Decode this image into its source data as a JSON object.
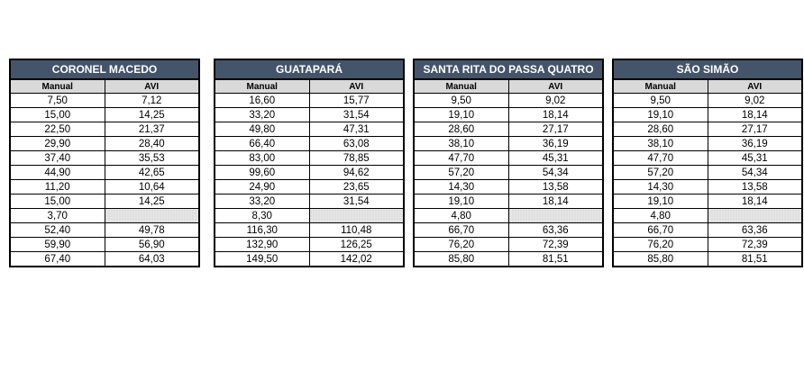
{
  "tables": [
    {
      "title": "CORONEL MACEDO",
      "columns": [
        "Manual",
        "AVI"
      ],
      "rows": [
        [
          "7,50",
          "7,12"
        ],
        [
          "15,00",
          "14,25"
        ],
        [
          "22,50",
          "21,37"
        ],
        [
          "29,90",
          "28,40"
        ],
        [
          "37,40",
          "35,53"
        ],
        [
          "44,90",
          "42,65"
        ],
        [
          "11,20",
          "10,64"
        ],
        [
          "15,00",
          "14,25"
        ],
        [
          "3,70",
          ""
        ],
        [
          "52,40",
          "49,78"
        ],
        [
          "59,90",
          "56,90"
        ],
        [
          "67,40",
          "64,03"
        ]
      ]
    },
    {
      "title": "GUATAPARÁ",
      "columns": [
        "Manual",
        "AVI"
      ],
      "rows": [
        [
          "16,60",
          "15,77"
        ],
        [
          "33,20",
          "31,54"
        ],
        [
          "49,80",
          "47,31"
        ],
        [
          "66,40",
          "63,08"
        ],
        [
          "83,00",
          "78,85"
        ],
        [
          "99,60",
          "94,62"
        ],
        [
          "24,90",
          "23,65"
        ],
        [
          "33,20",
          "31,54"
        ],
        [
          "8,30",
          ""
        ],
        [
          "116,30",
          "110,48"
        ],
        [
          "132,90",
          "126,25"
        ],
        [
          "149,50",
          "142,02"
        ]
      ]
    },
    {
      "title": "SANTA RITA DO PASSA QUATRO",
      "columns": [
        "Manual",
        "AVI"
      ],
      "rows": [
        [
          "9,50",
          "9,02"
        ],
        [
          "19,10",
          "18,14"
        ],
        [
          "28,60",
          "27,17"
        ],
        [
          "38,10",
          "36,19"
        ],
        [
          "47,70",
          "45,31"
        ],
        [
          "57,20",
          "54,34"
        ],
        [
          "14,30",
          "13,58"
        ],
        [
          "19,10",
          "18,14"
        ],
        [
          "4,80",
          ""
        ],
        [
          "66,70",
          "63,36"
        ],
        [
          "76,20",
          "72,39"
        ],
        [
          "85,80",
          "81,51"
        ]
      ]
    },
    {
      "title": "SÃO SIMÃO",
      "columns": [
        "Manual",
        "AVI"
      ],
      "rows": [
        [
          "9,50",
          "9,02"
        ],
        [
          "19,10",
          "18,14"
        ],
        [
          "28,60",
          "27,17"
        ],
        [
          "38,10",
          "36,19"
        ],
        [
          "47,70",
          "45,31"
        ],
        [
          "57,20",
          "54,34"
        ],
        [
          "14,30",
          "13,58"
        ],
        [
          "19,10",
          "18,14"
        ],
        [
          "4,80",
          ""
        ],
        [
          "66,70",
          "63,36"
        ],
        [
          "76,20",
          "72,39"
        ],
        [
          "85,80",
          "81,51"
        ]
      ]
    }
  ]
}
